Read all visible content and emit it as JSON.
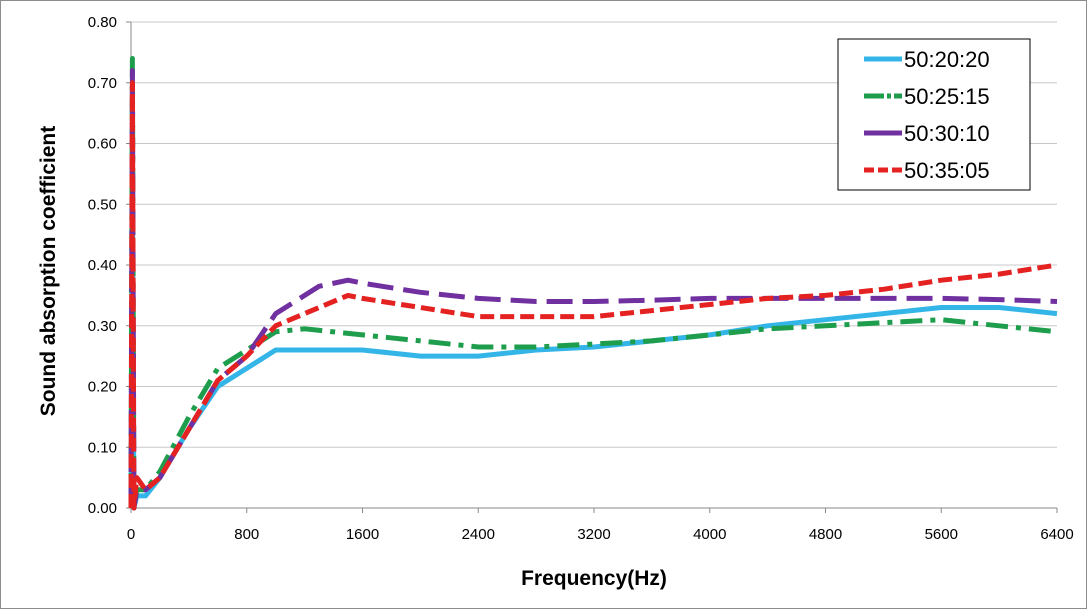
{
  "chart_data": {
    "type": "line",
    "title": "",
    "xlabel": "Frequency(Hz)",
    "ylabel": "Sound absorption coefficient",
    "xlim": [
      0,
      6400
    ],
    "ylim": [
      0,
      0.8
    ],
    "x_ticks": [
      "0",
      "800",
      "1600",
      "2400",
      "3200",
      "4000",
      "4800",
      "5600",
      "6400"
    ],
    "y_ticks": [
      "0.00",
      "0.10",
      "0.20",
      "0.30",
      "0.40",
      "0.50",
      "0.60",
      "0.70",
      "0.80"
    ],
    "grid": "horizontal",
    "legend": "top-right",
    "series": [
      {
        "name": "50:20:20",
        "color": "#33b5e8",
        "dash": "solid",
        "points": [
          [
            0,
            0.0
          ],
          [
            10,
            0.55
          ],
          [
            20,
            0.0
          ],
          [
            40,
            0.02
          ],
          [
            100,
            0.02
          ],
          [
            200,
            0.05
          ],
          [
            400,
            0.13
          ],
          [
            600,
            0.2
          ],
          [
            800,
            0.23
          ],
          [
            1000,
            0.26
          ],
          [
            1300,
            0.26
          ],
          [
            1600,
            0.26
          ],
          [
            2000,
            0.25
          ],
          [
            2400,
            0.25
          ],
          [
            2800,
            0.26
          ],
          [
            3200,
            0.265
          ],
          [
            3600,
            0.275
          ],
          [
            4000,
            0.285
          ],
          [
            4400,
            0.3
          ],
          [
            4800,
            0.31
          ],
          [
            5200,
            0.32
          ],
          [
            5600,
            0.33
          ],
          [
            6000,
            0.33
          ],
          [
            6400,
            0.32
          ]
        ]
      },
      {
        "name": "50:25:15",
        "color": "#1e9e4c",
        "dash": "dash-dot",
        "points": [
          [
            0,
            0.0
          ],
          [
            10,
            0.74
          ],
          [
            20,
            0.0
          ],
          [
            40,
            0.03
          ],
          [
            100,
            0.03
          ],
          [
            200,
            0.06
          ],
          [
            400,
            0.15
          ],
          [
            600,
            0.23
          ],
          [
            800,
            0.26
          ],
          [
            1000,
            0.29
          ],
          [
            1200,
            0.295
          ],
          [
            1600,
            0.285
          ],
          [
            2000,
            0.275
          ],
          [
            2400,
            0.265
          ],
          [
            2800,
            0.265
          ],
          [
            3200,
            0.27
          ],
          [
            3600,
            0.275
          ],
          [
            4000,
            0.285
          ],
          [
            4400,
            0.295
          ],
          [
            4800,
            0.3
          ],
          [
            5200,
            0.305
          ],
          [
            5600,
            0.31
          ],
          [
            6000,
            0.3
          ],
          [
            6400,
            0.29
          ]
        ]
      },
      {
        "name": "50:30:10",
        "color": "#7030a0",
        "dash": "long-dash",
        "points": [
          [
            0,
            0.0
          ],
          [
            10,
            0.72
          ],
          [
            20,
            0.0
          ],
          [
            40,
            0.03
          ],
          [
            100,
            0.03
          ],
          [
            200,
            0.05
          ],
          [
            400,
            0.13
          ],
          [
            600,
            0.21
          ],
          [
            800,
            0.25
          ],
          [
            1000,
            0.32
          ],
          [
            1300,
            0.365
          ],
          [
            1500,
            0.375
          ],
          [
            1600,
            0.37
          ],
          [
            2000,
            0.355
          ],
          [
            2400,
            0.345
          ],
          [
            2800,
            0.34
          ],
          [
            3200,
            0.34
          ],
          [
            3600,
            0.342
          ],
          [
            4000,
            0.345
          ],
          [
            4400,
            0.345
          ],
          [
            4800,
            0.345
          ],
          [
            5200,
            0.345
          ],
          [
            5600,
            0.345
          ],
          [
            6000,
            0.343
          ],
          [
            6400,
            0.34
          ]
        ]
      },
      {
        "name": "50:35:05",
        "color": "#e52222",
        "dash": "dash",
        "points": [
          [
            0,
            0.0
          ],
          [
            10,
            0.7
          ],
          [
            20,
            0.0
          ],
          [
            40,
            0.05
          ],
          [
            100,
            0.03
          ],
          [
            200,
            0.05
          ],
          [
            400,
            0.13
          ],
          [
            600,
            0.21
          ],
          [
            800,
            0.25
          ],
          [
            1000,
            0.3
          ],
          [
            1300,
            0.33
          ],
          [
            1500,
            0.35
          ],
          [
            1600,
            0.345
          ],
          [
            2000,
            0.33
          ],
          [
            2400,
            0.315
          ],
          [
            2800,
            0.315
          ],
          [
            3200,
            0.315
          ],
          [
            3600,
            0.325
          ],
          [
            4000,
            0.335
          ],
          [
            4400,
            0.345
          ],
          [
            4800,
            0.35
          ],
          [
            5200,
            0.36
          ],
          [
            5600,
            0.375
          ],
          [
            6000,
            0.385
          ],
          [
            6400,
            0.4
          ]
        ]
      }
    ]
  }
}
